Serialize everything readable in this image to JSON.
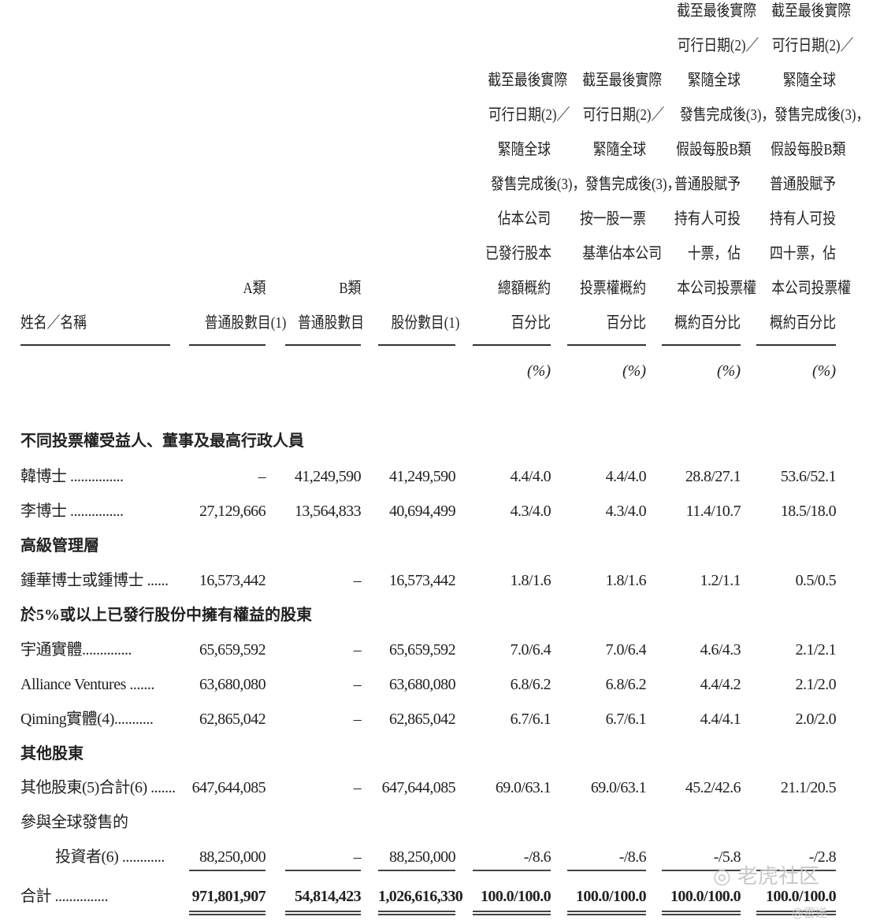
{
  "headers": [
    {
      "lines": [
        "姓名／名稱"
      ]
    },
    {
      "lines": [
        "A類",
        "普通股數目(1)"
      ]
    },
    {
      "lines": [
        "B類",
        "普通股數目"
      ]
    },
    {
      "lines": [
        "股份數目(1)"
      ]
    },
    {
      "lines": [
        "截至最後實際",
        "可行日期(2)／",
        "緊隨全球",
        "發售完成後(3)，",
        "佔本公司",
        "已發行股本",
        "總額概約",
        "百分比"
      ]
    },
    {
      "lines": [
        "截至最後實際",
        "可行日期(2)／",
        "緊隨全球",
        "發售完成後(3)，",
        "按一股一票",
        "基準佔本公司",
        "投票權概約",
        "百分比"
      ]
    },
    {
      "lines": [
        "截至最後實際",
        "可行日期(2)／",
        "緊隨全球",
        "發售完成後(3)，",
        "假設每股B類",
        "普通股賦予",
        "持有人可投",
        "十票，佔",
        "本公司投票權",
        "概約百分比"
      ]
    },
    {
      "lines": [
        "截至最後實際",
        "可行日期(2)／",
        "緊隨全球",
        "發售完成後(3)，",
        "假設每股B類",
        "普通股賦予",
        "持有人可投",
        "四十票，佔",
        "本公司投票權",
        "概約百分比"
      ]
    }
  ],
  "percent_unit": "(%)",
  "rows": [
    {
      "type": "section",
      "label": "不同投票權受益人、董事及最高行政人員"
    },
    {
      "type": "data",
      "label": "韓博士 ...............",
      "values": [
        "–",
        "41,249,590",
        "41,249,590",
        "4.4/4.0",
        "4.4/4.0",
        "28.8/27.1",
        "53.6/52.1"
      ]
    },
    {
      "type": "data",
      "label": "李博士 ...............",
      "values": [
        "27,129,666",
        "13,564,833",
        "40,694,499",
        "4.3/4.0",
        "4.3/4.0",
        "11.4/10.7",
        "18.5/18.0"
      ]
    },
    {
      "type": "section",
      "label": "高級管理層"
    },
    {
      "type": "data",
      "label": "鍾華博士或鍾博士 ......",
      "values": [
        "16,573,442",
        "–",
        "16,573,442",
        "1.8/1.6",
        "1.8/1.6",
        "1.2/1.1",
        "0.5/0.5"
      ]
    },
    {
      "type": "section",
      "label": "於5%或以上已發行股份中擁有權益的股東"
    },
    {
      "type": "data",
      "label": "宇通實體..............",
      "values": [
        "65,659,592",
        "–",
        "65,659,592",
        "7.0/6.4",
        "7.0/6.4",
        "4.6/4.3",
        "2.1/2.1"
      ]
    },
    {
      "type": "data",
      "label": "Alliance Ventures .......",
      "values": [
        "63,680,080",
        "–",
        "63,680,080",
        "6.8/6.2",
        "6.8/6.2",
        "4.4/4.2",
        "2.1/2.0"
      ]
    },
    {
      "type": "data",
      "label": "Qiming實體(4)...........",
      "values": [
        "62,865,042",
        "–",
        "62,865,042",
        "6.7/6.1",
        "6.7/6.1",
        "4.4/4.1",
        "2.0/2.0"
      ]
    },
    {
      "type": "section",
      "label": "其他股東"
    },
    {
      "type": "data",
      "label": "其他股東(5)合計(6) .......",
      "values": [
        "647,644,085",
        "–",
        "647,644,085",
        "69.0/63.1",
        "69.0/63.1",
        "45.2/42.6",
        "21.1/20.5"
      ]
    },
    {
      "type": "text",
      "label": "參與全球發售的"
    },
    {
      "type": "data",
      "indent": true,
      "label": "投資者(6) ............",
      "values": [
        "88,250,000",
        "–",
        "88,250,000",
        "-/8.6",
        "-/8.6",
        "-/5.8",
        "-/2.8"
      ]
    },
    {
      "type": "total",
      "label": "合計 ...............",
      "values": [
        "971,801,907",
        "54,814,423",
        "1,026,616,330",
        "100.0/100.0",
        "100.0/100.0",
        "100.0/100.0",
        "100.0/100.0"
      ]
    }
  ],
  "watermark": {
    "logo": "老虎社区",
    "handle": "@雷递"
  }
}
